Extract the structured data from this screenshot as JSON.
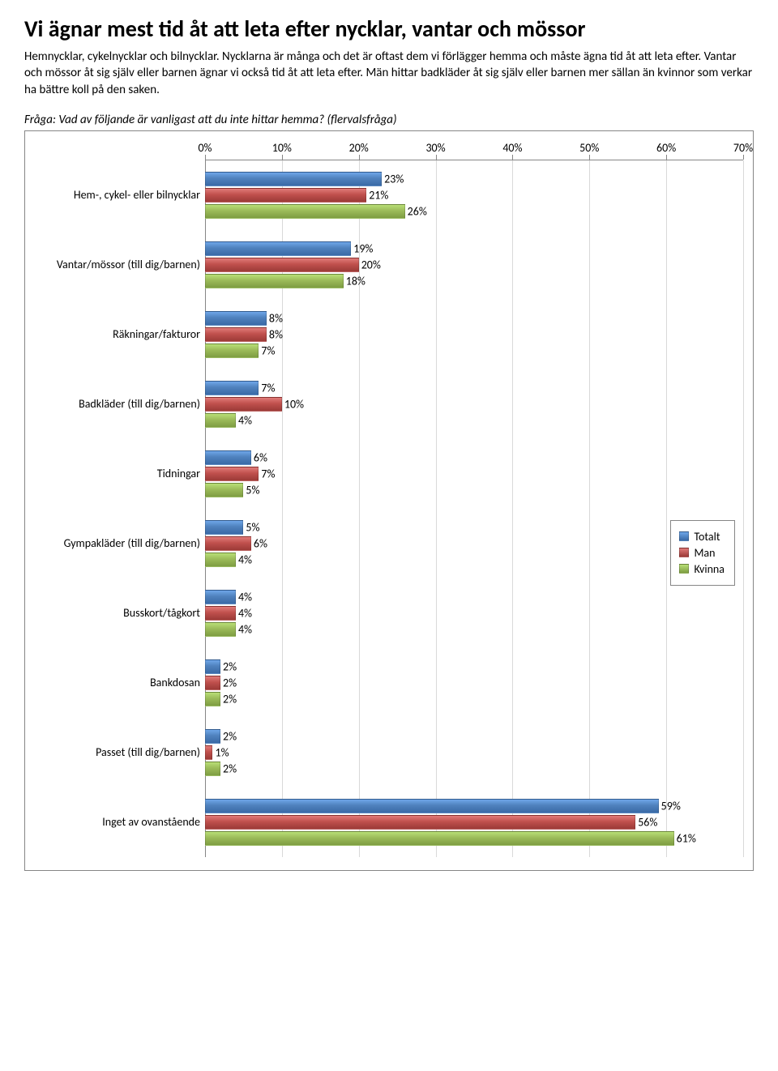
{
  "title": "Vi ägnar mest tid åt att leta efter nycklar, vantar och mössor",
  "intro": "Hemnycklar, cykelnycklar och bilnycklar. Nycklarna är många och det är oftast dem vi förlägger hemma och måste ägna tid åt att leta efter. Vantar och mössor åt sig själv eller barnen ägnar vi också tid åt att leta efter. Män hittar badkläder åt sig själv eller barnen mer sällan än kvinnor som verkar ha bättre koll på den saken.",
  "question": "Fråga: Vad av följande är vanligast att du inte hittar hemma? (flervalsfråga)",
  "chart": {
    "type": "bar-horizontal-grouped",
    "x_min": 0,
    "x_max": 70,
    "x_tick_step": 10,
    "x_tick_labels": [
      "0%",
      "10%",
      "20%",
      "30%",
      "40%",
      "50%",
      "60%",
      "70%"
    ],
    "series": [
      {
        "key": "totalt",
        "label": "Totalt",
        "color": "#4f81bd"
      },
      {
        "key": "man",
        "label": "Man",
        "color": "#c0504d"
      },
      {
        "key": "kvinna",
        "label": "Kvinna",
        "color": "#9bbb59"
      }
    ],
    "categories": [
      {
        "label": "Hem-, cykel- eller bilnycklar",
        "values": {
          "totalt": 23,
          "man": 21,
          "kvinna": 26
        }
      },
      {
        "label": "Vantar/mössor (till dig/barnen)",
        "values": {
          "totalt": 19,
          "man": 20,
          "kvinna": 18
        }
      },
      {
        "label": "Räkningar/fakturor",
        "values": {
          "totalt": 8,
          "man": 8,
          "kvinna": 7
        }
      },
      {
        "label": "Badkläder (till dig/barnen)",
        "values": {
          "totalt": 7,
          "man": 10,
          "kvinna": 4
        }
      },
      {
        "label": "Tidningar",
        "values": {
          "totalt": 6,
          "man": 7,
          "kvinna": 5
        }
      },
      {
        "label": "Gympakläder (till dig/barnen)",
        "values": {
          "totalt": 5,
          "man": 6,
          "kvinna": 4
        }
      },
      {
        "label": "Busskort/tågkort",
        "values": {
          "totalt": 4,
          "man": 4,
          "kvinna": 4
        }
      },
      {
        "label": "Bankdosan",
        "values": {
          "totalt": 2,
          "man": 2,
          "kvinna": 2
        }
      },
      {
        "label": "Passet (till dig/barnen)",
        "values": {
          "totalt": 2,
          "man": 1,
          "kvinna": 2
        }
      },
      {
        "label": "Inget av ovanstående",
        "values": {
          "totalt": 59,
          "man": 56,
          "kvinna": 61
        }
      }
    ],
    "grid_color": "#d9d9d9",
    "border_color": "#868686",
    "background_color": "#ffffff",
    "label_fontsize": 14,
    "title_fontsize": 28
  }
}
